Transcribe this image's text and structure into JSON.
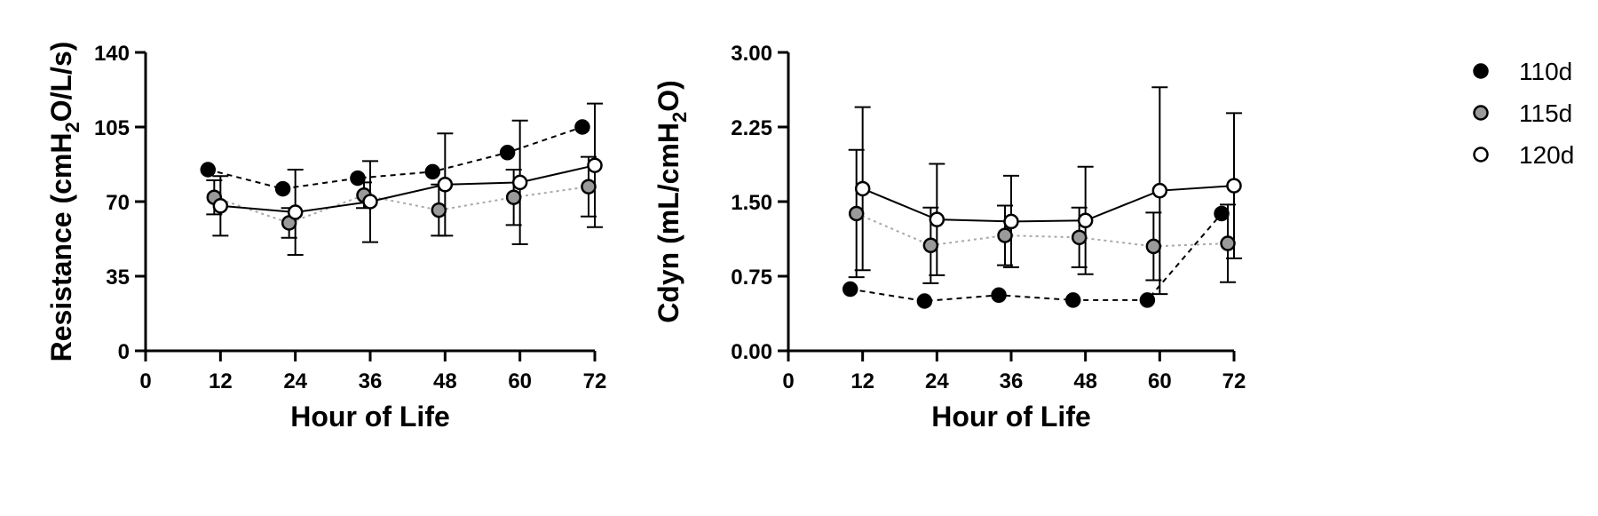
{
  "chart_data": [
    {
      "type": "line",
      "xlabel": "Hour of Life",
      "ylabel": {
        "pre": "Resistance (cmH",
        "sub": "2",
        "post": "O/L/s)"
      },
      "xlim": [
        0,
        72
      ],
      "ylim": [
        0,
        140
      ],
      "xticks": [
        0,
        12,
        24,
        36,
        48,
        60,
        72
      ],
      "yticks": [
        0,
        35,
        70,
        105,
        140
      ],
      "ytick_labels": [
        "0",
        "35",
        "70",
        "105",
        "140"
      ],
      "series": [
        {
          "name": "110d",
          "x": [
            10,
            22,
            34,
            46,
            58,
            70
          ],
          "y": [
            85,
            76,
            81,
            84,
            93,
            105
          ],
          "err": [
            null,
            null,
            null,
            null,
            null,
            null
          ]
        },
        {
          "name": "115d",
          "x": [
            11,
            23,
            35,
            47,
            59,
            71
          ],
          "y": [
            72,
            60,
            73,
            66,
            72,
            77
          ],
          "err": [
            8,
            7,
            6,
            12,
            13,
            14
          ]
        },
        {
          "name": "120d",
          "x": [
            12,
            24,
            36,
            48,
            60,
            72
          ],
          "y": [
            68,
            65,
            70,
            78,
            79,
            87
          ],
          "err": [
            14,
            20,
            19,
            24,
            29,
            29
          ]
        }
      ]
    },
    {
      "type": "line",
      "xlabel": "Hour of Life",
      "ylabel": {
        "pre": "Cdyn (mL/cmH",
        "sub": "2",
        "post": "O)"
      },
      "xlim": [
        0,
        72
      ],
      "ylim": [
        0,
        3
      ],
      "xticks": [
        0,
        12,
        24,
        36,
        48,
        60,
        72
      ],
      "yticks": [
        0,
        0.75,
        1.5,
        2.25,
        3
      ],
      "ytick_labels": [
        "0.00",
        "0.75",
        "1.50",
        "2.25",
        "3.00"
      ],
      "series": [
        {
          "name": "110d",
          "x": [
            10,
            22,
            34,
            46,
            58,
            70
          ],
          "y": [
            0.62,
            0.5,
            0.56,
            0.51,
            0.51,
            1.38
          ],
          "err": [
            null,
            null,
            null,
            null,
            null,
            null
          ]
        },
        {
          "name": "115d",
          "x": [
            11,
            23,
            35,
            47,
            59,
            71
          ],
          "y": [
            1.38,
            1.06,
            1.16,
            1.14,
            1.05,
            1.08
          ],
          "err": [
            0.64,
            0.38,
            0.3,
            0.3,
            0.34,
            0.39
          ]
        },
        {
          "name": "120d",
          "x": [
            12,
            24,
            36,
            48,
            60,
            72
          ],
          "y": [
            1.63,
            1.32,
            1.3,
            1.31,
            1.61,
            1.66
          ],
          "err": [
            0.82,
            0.56,
            0.46,
            0.54,
            1.04,
            0.73
          ]
        }
      ]
    }
  ],
  "legend": {
    "placement": "right",
    "entries": [
      {
        "label": "110d",
        "fill": "#000000"
      },
      {
        "label": "115d",
        "fill": "#9a9a9a"
      },
      {
        "label": "120d",
        "fill": "#ffffff"
      }
    ]
  },
  "styles": {
    "110d": {
      "marker_fill": "#000000",
      "line_color": "#000000",
      "line_dash": "6,5"
    },
    "115d": {
      "marker_fill": "#9a9a9a",
      "line_color": "#a8a8a8",
      "line_dash": "3,4"
    },
    "120d": {
      "marker_fill": "#ffffff",
      "line_color": "#000000",
      "line_dash": ""
    }
  }
}
